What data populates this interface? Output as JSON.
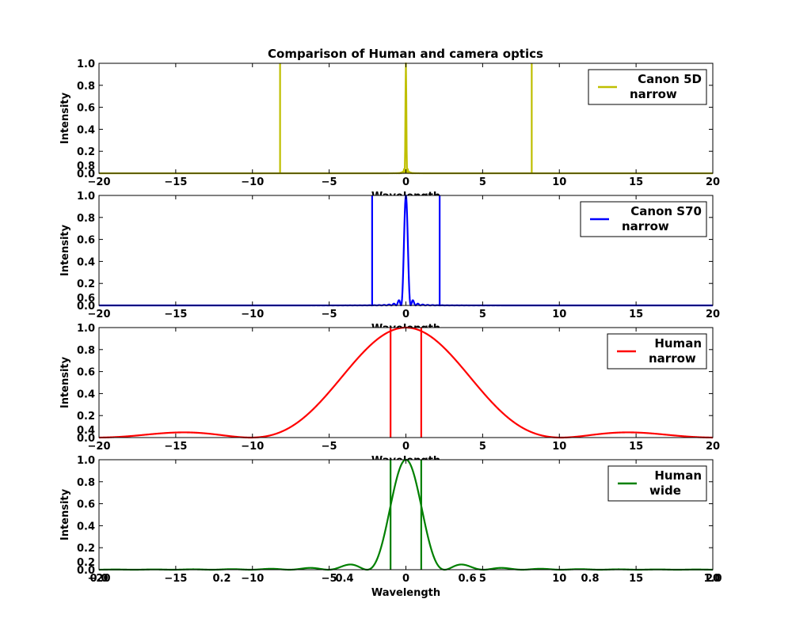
{
  "figure": {
    "title": "Comparison of Human and camera optics"
  },
  "chart_data": [
    {
      "type": "line",
      "title": "Comparison of Human and camera optics",
      "xlabel": "Wavelength",
      "ylabel": "Intensity",
      "xlim": [
        -20,
        20
      ],
      "ylim": [
        0,
        1
      ],
      "xticks": [
        "−20",
        "−15",
        "−10",
        "−5",
        "0",
        "5",
        "10",
        "15",
        "20"
      ],
      "yticks": [
        "0.0",
        "0.2",
        "0.4",
        "0.6",
        "0.8",
        "1.0"
      ],
      "legend": {
        "position": "top-right",
        "entries": [
          "Canon 5D",
          "narrow"
        ]
      },
      "series": [
        {
          "name": "Canon 5D narrow",
          "color": "#bfbf00",
          "sigma": 0.025,
          "apertures": [
            -8.2,
            8.2
          ]
        }
      ],
      "overlap_ticks": {
        "y": [
          "0.8"
        ],
        "x": []
      }
    },
    {
      "type": "line",
      "xlabel": "Wavelength",
      "ylabel": "Intensity",
      "xlim": [
        -20,
        20
      ],
      "ylim": [
        0,
        1
      ],
      "xticks": [
        "−20",
        "−15",
        "−10",
        "−5",
        "0",
        "5",
        "10",
        "15",
        "20"
      ],
      "yticks": [
        "0.0",
        "0.2",
        "0.4",
        "0.6",
        "0.8",
        "1.0"
      ],
      "legend": {
        "position": "top-right",
        "entries": [
          "Canon S70",
          "narrow"
        ]
      },
      "series": [
        {
          "name": "Canon S70 narrow",
          "color": "#0000ff",
          "sigma": 0.1,
          "apertures": [
            -2.2,
            2.2
          ]
        }
      ],
      "overlap_ticks": {
        "y": [
          "0.6"
        ],
        "x": []
      }
    },
    {
      "type": "line",
      "xlabel": "Wavelength",
      "ylabel": "Intensity",
      "xlim": [
        -20,
        20
      ],
      "ylim": [
        0,
        1
      ],
      "xticks": [
        "−20",
        "−15",
        "−10",
        "−5",
        "0",
        "5",
        "10",
        "15",
        "20"
      ],
      "yticks": [
        "0.0",
        "0.2",
        "0.4",
        "0.6",
        "0.8",
        "1.0"
      ],
      "legend": {
        "position": "top-right",
        "entries": [
          "Human",
          "narrow"
        ]
      },
      "series": [
        {
          "name": "Human narrow",
          "color": "#ff0000",
          "sigma": 3.2,
          "apertures": [
            -1.0,
            1.0
          ]
        }
      ],
      "overlap_ticks": {
        "y": [
          "0.4"
        ],
        "x": []
      }
    },
    {
      "type": "line",
      "xlabel": "Wavelength",
      "ylabel": "Intensity",
      "xlim": [
        -20,
        20
      ],
      "ylim": [
        0,
        1
      ],
      "xticks": [
        "−20",
        "−15",
        "−10",
        "−5",
        "0",
        "5",
        "10",
        "15",
        "20"
      ],
      "yticks": [
        "0.0",
        "0.2",
        "0.4",
        "0.6",
        "0.8",
        "1.0"
      ],
      "legend": {
        "position": "top-right",
        "entries": [
          "Human",
          "wide"
        ]
      },
      "series": [
        {
          "name": "Human wide",
          "color": "#008000",
          "sigma": 0.8,
          "apertures": [
            -1.0,
            1.0
          ]
        }
      ],
      "overlap_ticks": {
        "y": [
          "0.2"
        ],
        "x": [
          "0.0",
          "0.2",
          "0.4",
          "0.6",
          "0.8",
          "1.0"
        ]
      }
    }
  ]
}
